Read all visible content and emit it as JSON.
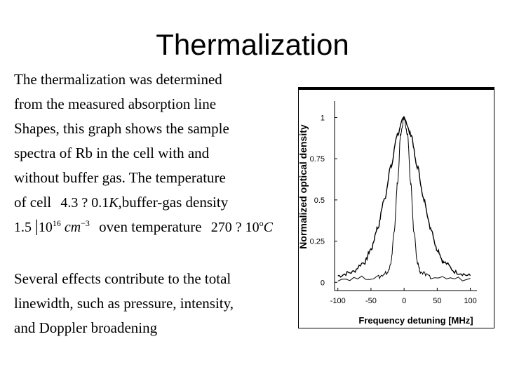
{
  "slide": {
    "title": "Thermalization",
    "paragraph1": [
      "The thermalization was determined",
      "from the measured absorption line",
      "Shapes, this graph shows the sample",
      "spectra of Rb in the cell with and",
      "without buffer gas. The temperature"
    ],
    "line6_text_a": "of cell",
    "line6_text_b": ",buffer-gas density",
    "line7_text": "oven temperature",
    "math": {
      "cell_temp": "4.3 ? 0.1",
      "cell_temp_unit": "K",
      "density_mantissa": "1.5",
      "density_cross": "10",
      "density_exp": "16",
      "density_unit": "cm",
      "density_unit_exp": "−3",
      "oven_temp": "270 ? 10",
      "oven_temp_deg": "o",
      "oven_temp_unit": "C"
    },
    "paragraph2": [
      "Several effects contribute to the total",
      "linewidth, such as pressure, intensity,",
      "and Doppler broadening"
    ]
  },
  "chart_data": {
    "type": "line",
    "xlabel": "Frequency detuning [MHz]",
    "ylabel": "Normalized optical density",
    "xlim": [
      -105,
      110
    ],
    "ylim": [
      -0.05,
      1.1
    ],
    "xticks": [
      -100,
      -50,
      0,
      50,
      100
    ],
    "xtick_labels": [
      "-100",
      "-50",
      "0",
      "50",
      "100"
    ],
    "yticks": [
      0,
      0.25,
      0.5,
      0.75,
      1
    ],
    "ytick_labels": [
      "0",
      "0.25",
      "0.5",
      "0.75",
      "1"
    ],
    "grid": false,
    "series": [
      {
        "x": [
          -100,
          -80,
          -60,
          -50,
          -40,
          -30,
          -20,
          -10,
          0,
          10,
          20,
          30,
          40,
          50,
          60,
          80,
          100
        ],
        "values": [
          0.04,
          0.06,
          0.12,
          0.2,
          0.33,
          0.5,
          0.7,
          0.9,
          1.0,
          0.9,
          0.7,
          0.5,
          0.33,
          0.2,
          0.12,
          0.06,
          0.04
        ],
        "color": "#000000"
      },
      {
        "x": [
          -100,
          -40,
          -25,
          -20,
          -15,
          -10,
          -5,
          0,
          5,
          10,
          15,
          20,
          25,
          40,
          100
        ],
        "values": [
          0.02,
          0.03,
          0.06,
          0.12,
          0.3,
          0.6,
          0.9,
          1.0,
          0.9,
          0.6,
          0.3,
          0.12,
          0.06,
          0.03,
          0.02
        ],
        "color": "#000000"
      }
    ]
  }
}
